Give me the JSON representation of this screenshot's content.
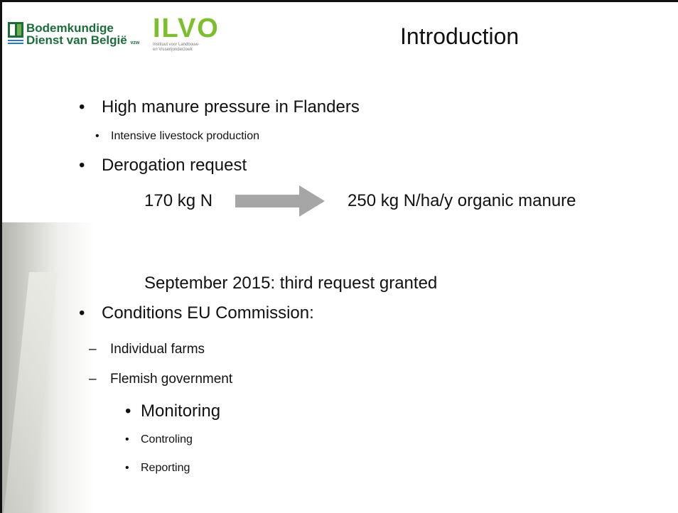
{
  "header": {
    "logo1": {
      "line1": "Bodemkundige",
      "line2": "Dienst van België",
      "suffix": "vzw"
    },
    "logo2": {
      "name": "ILVO",
      "line1": "Instituut voor Landbouw-",
      "line2": "en Visserijonderzoek"
    },
    "title": "Introduction"
  },
  "body": {
    "bullet1": "High manure pressure in Flanders",
    "bullet1_sub": "Intensive livestock production",
    "bullet2": "Derogation request",
    "from": "170 kg N",
    "to": "250 kg N/ha/y organic manure",
    "granted": "September 2015: third request granted",
    "bullet3": "Conditions EU Commission:",
    "conditions": [
      "Individual farms",
      "Flemish government"
    ],
    "government_tasks": [
      "Monitoring",
      "Controling",
      "Reporting"
    ]
  }
}
